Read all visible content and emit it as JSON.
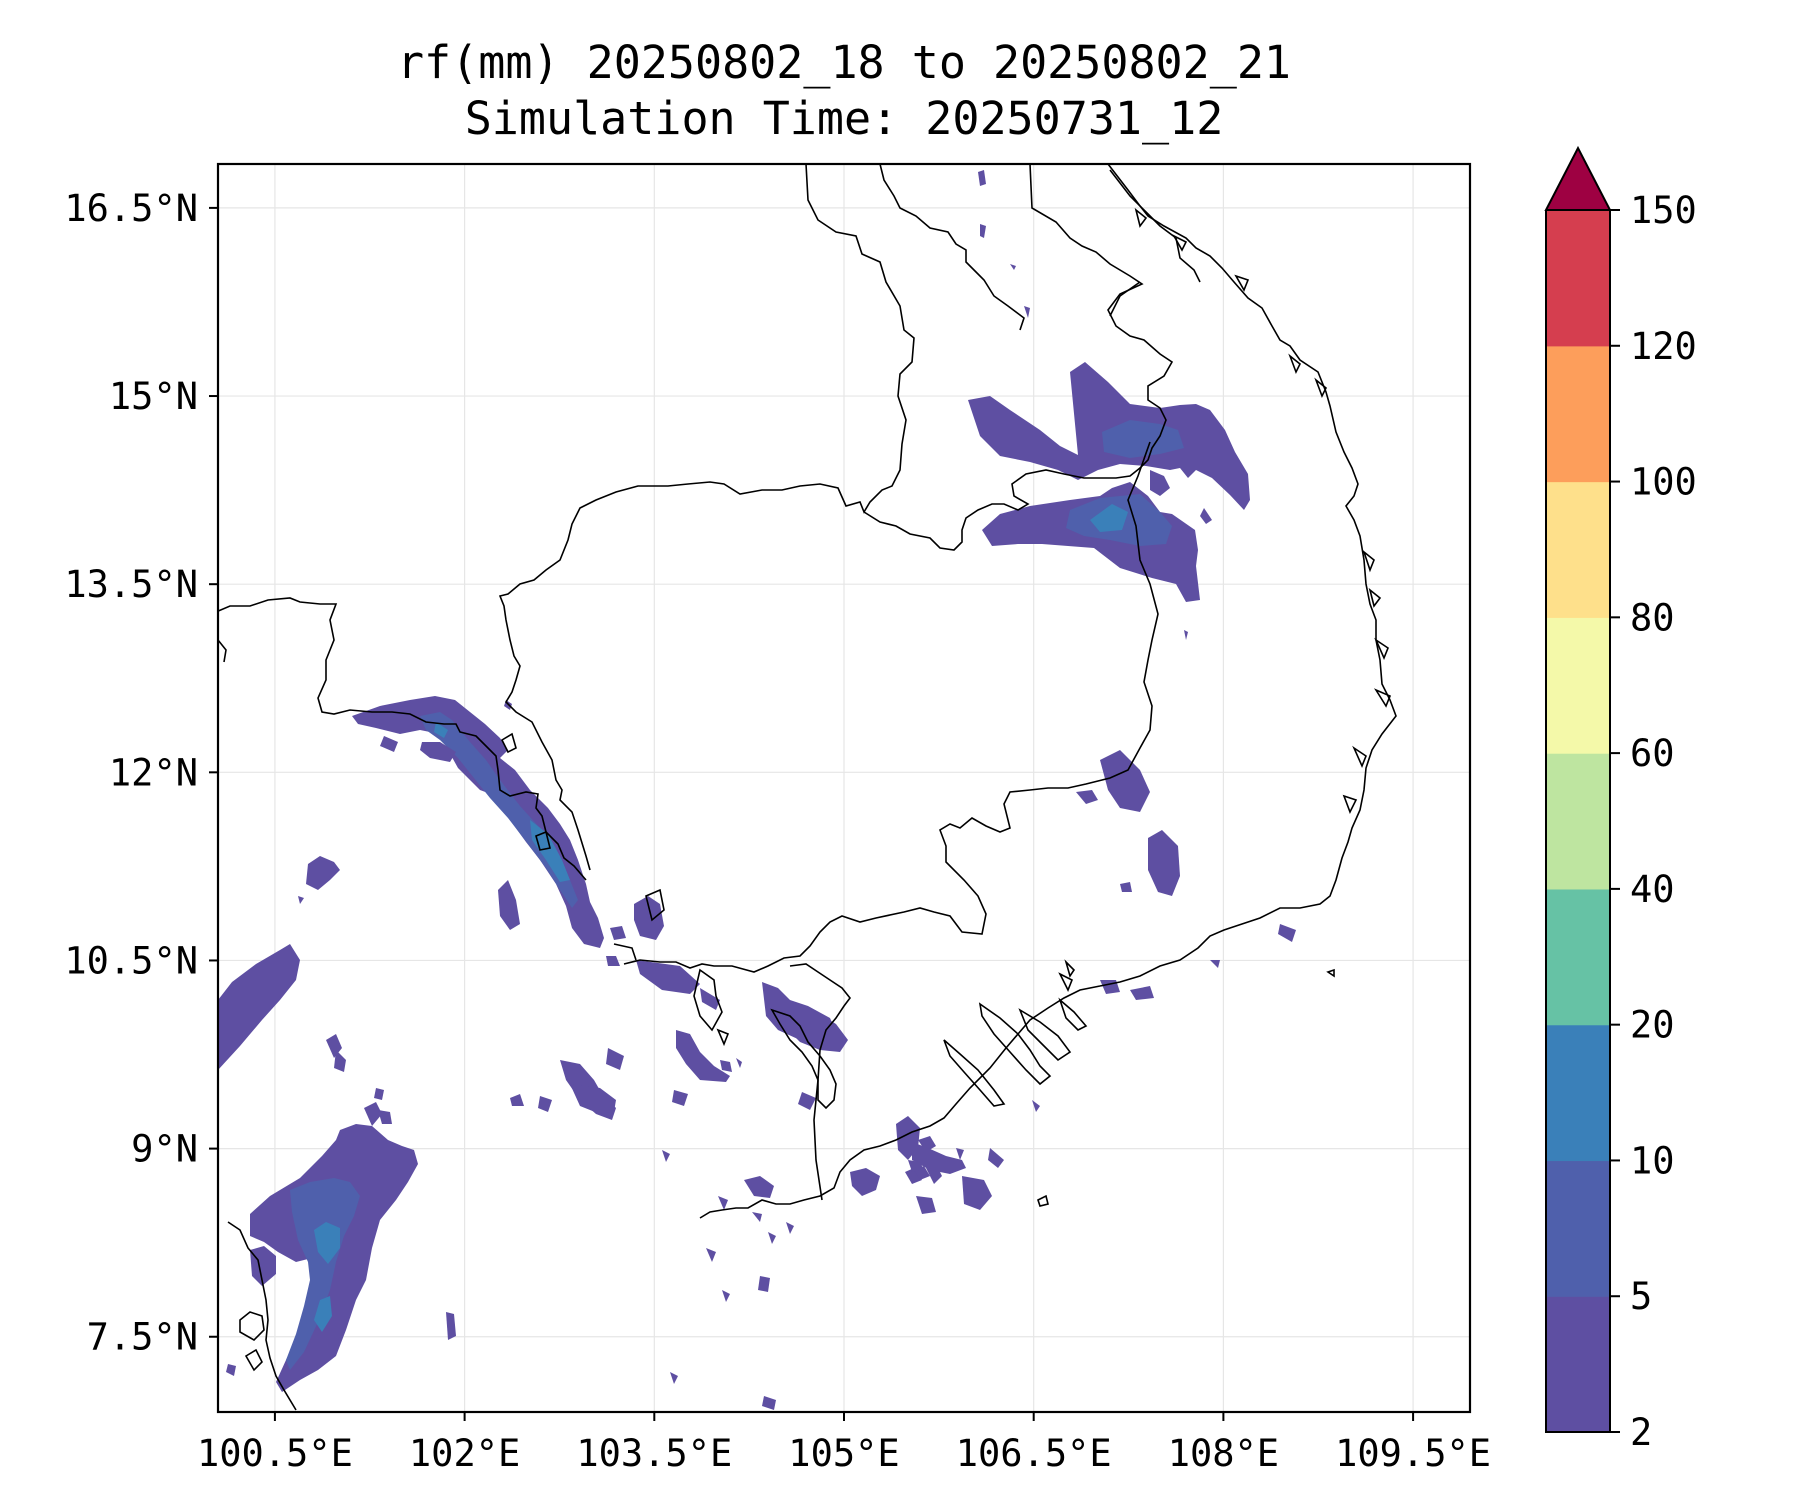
{
  "figure": {
    "title_line1": "rf(mm) 20250802_18 to 20250802_21",
    "title_line2": "Simulation Time: 20250731_12"
  },
  "chart_data": {
    "type": "filled-contour map",
    "variable": "rf(mm)",
    "extent": {
      "lon": [
        100.05,
        109.95
      ],
      "lat": [
        6.9,
        16.85
      ]
    },
    "x_ticks": [
      {
        "value": 100.5,
        "label": "100.5°E"
      },
      {
        "value": 102.0,
        "label": "102°E"
      },
      {
        "value": 103.5,
        "label": "103.5°E"
      },
      {
        "value": 105.0,
        "label": "105°E"
      },
      {
        "value": 106.5,
        "label": "106.5°E"
      },
      {
        "value": 108.0,
        "label": "108°E"
      },
      {
        "value": 109.5,
        "label": "109.5°E"
      }
    ],
    "y_ticks": [
      {
        "value": 16.5,
        "label": "16.5°N"
      },
      {
        "value": 15.0,
        "label": "15°N"
      },
      {
        "value": 13.5,
        "label": "13.5°N"
      },
      {
        "value": 12.0,
        "label": "12°N"
      },
      {
        "value": 10.5,
        "label": "10.5°N"
      },
      {
        "value": 9.0,
        "label": "9°N"
      },
      {
        "value": 7.5,
        "label": "7.5°N"
      }
    ],
    "grid": true,
    "colorbar": {
      "position": "right",
      "extend": "max",
      "extend_color": "#9e0142",
      "levels": [
        2,
        5,
        10,
        20,
        40,
        60,
        80,
        100,
        120,
        150
      ],
      "labels": [
        "2",
        "5",
        "10",
        "20",
        "40",
        "60",
        "80",
        "100",
        "120",
        "150"
      ],
      "colors": [
        "#5e4fa2",
        "#4f60ac",
        "#3a80b9",
        "#66c2a5",
        "#bee5a0",
        "#f4f9a9",
        "#fee08b",
        "#fd9e5b",
        "#d53e4f"
      ]
    },
    "rain_areas": [
      {
        "level": "2-5",
        "lon": 106.9,
        "lat": 14.8
      },
      {
        "level": "5-10",
        "lon": 107.3,
        "lat": 14.0
      },
      {
        "level": "5-10",
        "lon": 101.9,
        "lat": 11.8
      },
      {
        "level": "5-10",
        "lon": 101.0,
        "lat": 8.8
      }
    ]
  }
}
